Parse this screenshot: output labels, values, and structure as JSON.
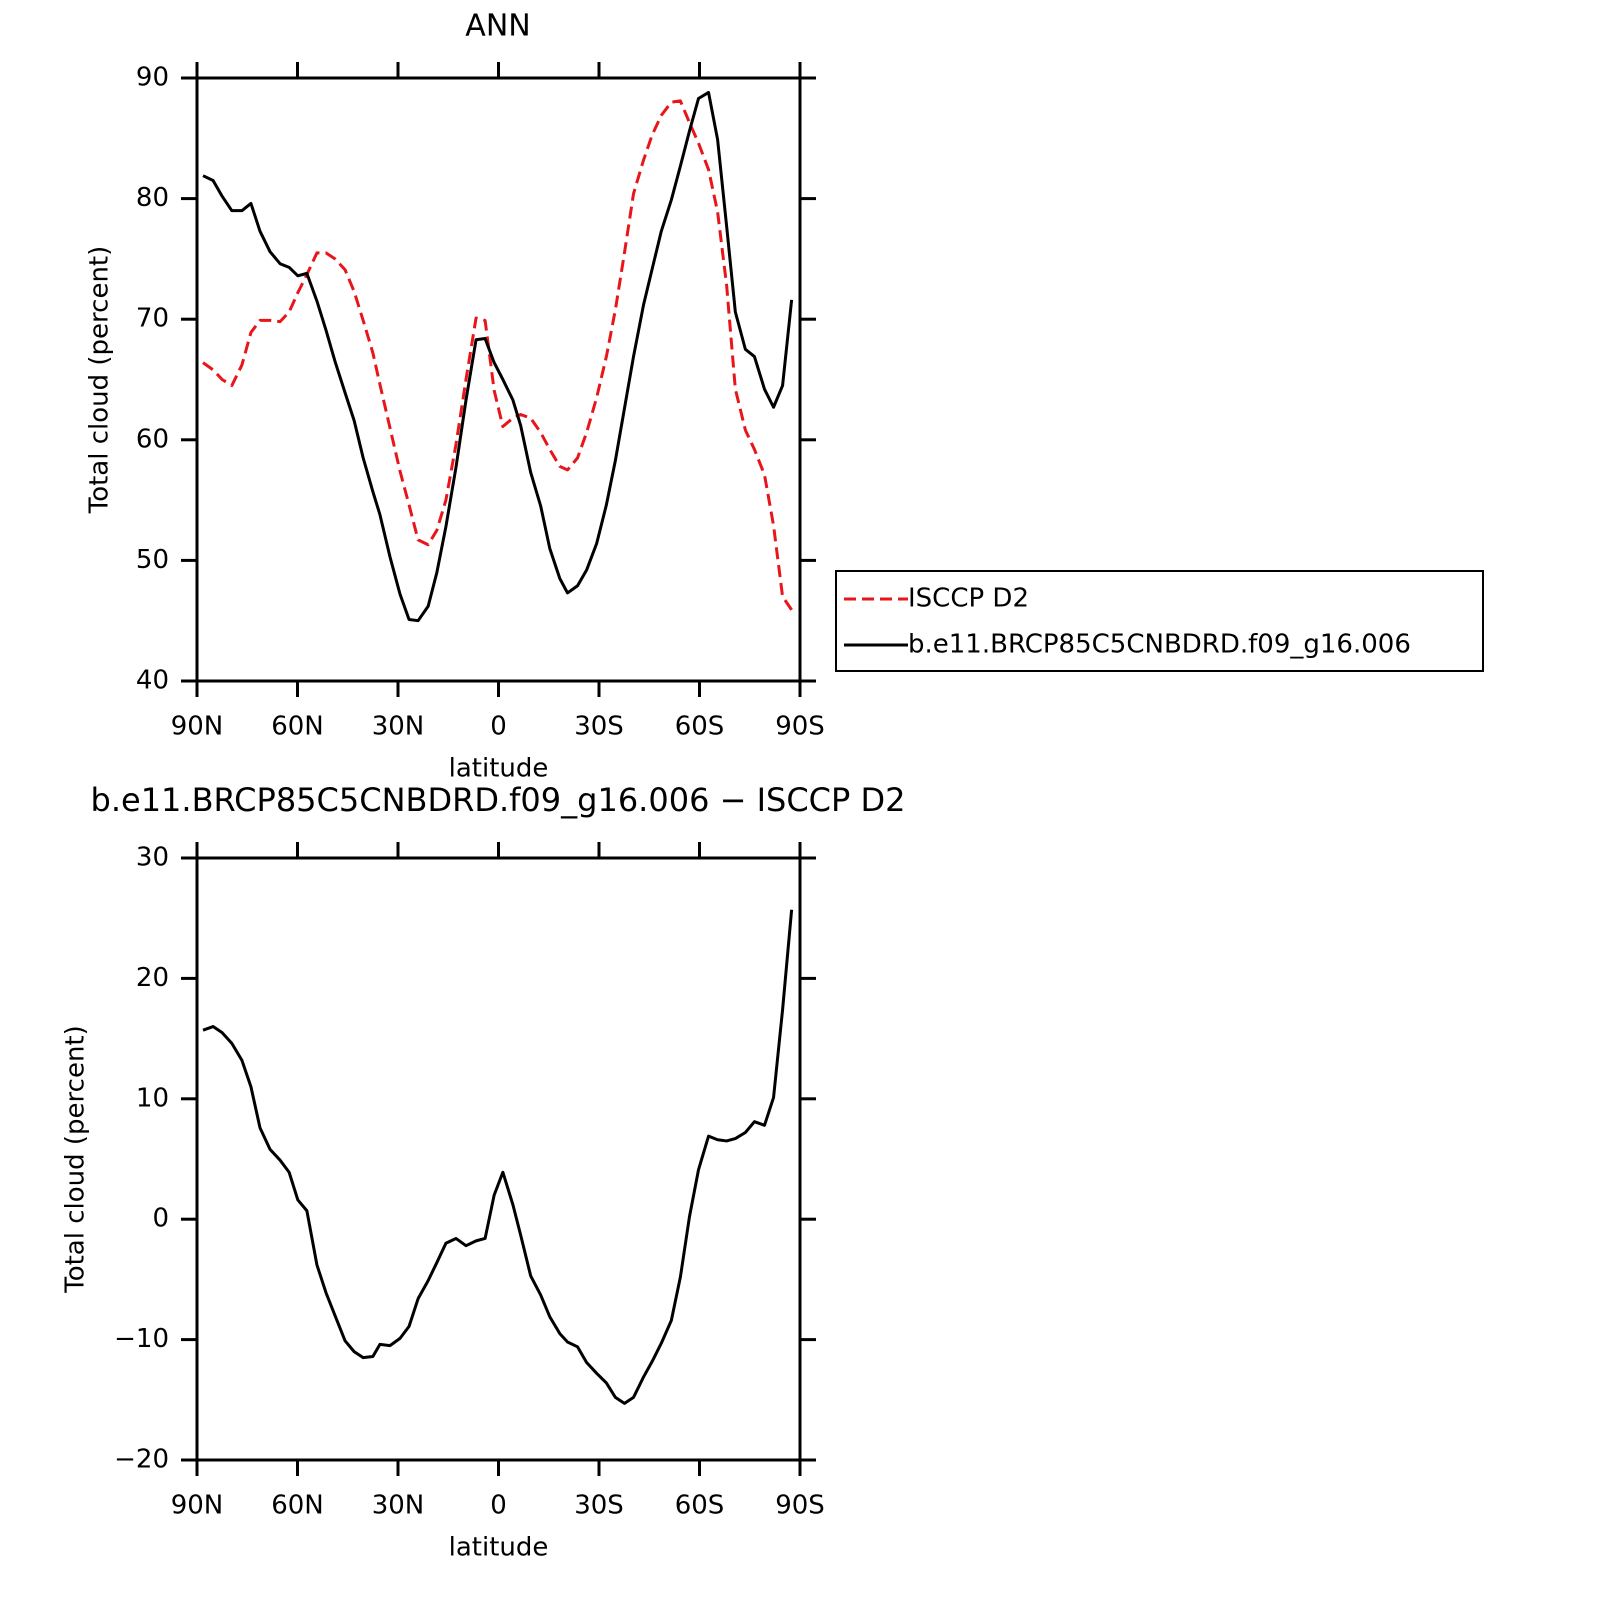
{
  "chart_data": [
    {
      "type": "line",
      "title": "ANN",
      "x_label": "latitude",
      "y_label": "Total cloud (percent)",
      "xlim": [
        90,
        -90
      ],
      "xticks": [
        {
          "value": 90,
          "label": "90N"
        },
        {
          "value": 60,
          "label": "60N"
        },
        {
          "value": 30,
          "label": "30N"
        },
        0,
        {
          "value": -30,
          "label": "30S"
        },
        {
          "value": -60,
          "label": "60S"
        },
        {
          "value": -90,
          "label": "90S"
        }
      ],
      "ylim": [
        40,
        90
      ],
      "yticks": [
        40,
        50,
        60,
        70,
        80,
        90
      ],
      "legend": "right",
      "x": [
        88.2,
        85.2,
        82.5,
        79.6,
        76.6,
        73.9,
        71.2,
        68.2,
        65.2,
        62.5,
        59.9,
        57.2,
        54.2,
        51.5,
        48.8,
        45.8,
        43.1,
        40.4,
        37.5,
        35.4,
        32.4,
        29.4,
        26.7,
        24.0,
        21.0,
        18.4,
        15.7,
        12.7,
        9.7,
        6.7,
        4.0,
        1.3,
        -1.3,
        -4.3,
        -6.6,
        -9.6,
        -12.6,
        -15.3,
        -18.3,
        -20.6,
        -23.6,
        -26.3,
        -29.3,
        -32.2,
        -34.9,
        -37.6,
        -40.3,
        -43.3,
        -45.9,
        -48.6,
        -51.6,
        -54.3,
        -57.0,
        -59.7,
        -62.7,
        -65.4,
        -68.1,
        -70.7,
        -73.7,
        -76.4,
        -79.4,
        -82.1,
        -84.8,
        -87.5
      ],
      "series": [
        {
          "name": "ISCCP D2",
          "color": "#e8161b",
          "style": "dashed",
          "values": [
            66.4,
            65.8,
            65.0,
            64.5,
            66.2,
            68.9,
            69.9,
            69.9,
            69.8,
            70.6,
            72.2,
            73.7,
            75.5,
            75.5,
            75.0,
            74.1,
            72.3,
            69.9,
            67.2,
            64.6,
            61.0,
            57.4,
            54.6,
            51.7,
            51.3,
            52.5,
            55.0,
            59.6,
            65.0,
            70.1,
            69.9,
            64.1,
            61.1,
            61.8,
            62.1,
            61.8,
            60.6,
            59.2,
            57.8,
            57.5,
            58.5,
            60.6,
            63.5,
            66.9,
            70.8,
            75.5,
            80.4,
            83.2,
            85.3,
            86.9,
            88.0,
            88.1,
            86.3,
            84.6,
            82.4,
            78.9,
            72.8,
            64.2,
            60.8,
            59.2,
            57.1,
            52.9,
            47.0,
            45.9
          ]
        },
        {
          "name": "b.e11.BRCP85C5CNBDRD.f09_g16.006",
          "color": "#000000",
          "style": "solid",
          "values": [
            81.9,
            81.5,
            80.2,
            79.0,
            79.0,
            79.6,
            77.3,
            75.6,
            74.6,
            74.3,
            73.6,
            73.8,
            71.5,
            69.1,
            66.5,
            63.9,
            61.6,
            58.5,
            55.7,
            53.8,
            50.3,
            47.2,
            45.1,
            45.0,
            46.2,
            49.0,
            52.8,
            57.7,
            63.3,
            68.3,
            68.4,
            66.4,
            65.0,
            63.3,
            61.2,
            57.3,
            54.5,
            51.0,
            48.5,
            47.3,
            47.9,
            49.2,
            51.4,
            54.6,
            58.3,
            62.6,
            66.9,
            71.2,
            74.2,
            77.3,
            79.9,
            82.7,
            85.6,
            88.3,
            88.8,
            84.9,
            77.7,
            70.6,
            67.5,
            66.9,
            64.2,
            62.7,
            64.5,
            71.6
          ]
        }
      ]
    },
    {
      "type": "line",
      "title": "b.e11.BRCP85C5CNBDRD.f09_g16.006 − ISCCP D2",
      "x_label": "latitude",
      "y_label": "Total cloud (percent)",
      "xlim": [
        90,
        -90
      ],
      "xticks": [
        {
          "value": 90,
          "label": "90N"
        },
        {
          "value": 60,
          "label": "60N"
        },
        {
          "value": 30,
          "label": "30N"
        },
        0,
        {
          "value": -30,
          "label": "30S"
        },
        {
          "value": -60,
          "label": "60S"
        },
        {
          "value": -90,
          "label": "90S"
        }
      ],
      "ylim": [
        -20,
        30
      ],
      "yticks": [
        {
          "value": -20,
          "label": "−20"
        },
        {
          "value": -10,
          "label": "−10"
        },
        0,
        10,
        20,
        30
      ],
      "x": [
        88.2,
        85.2,
        82.5,
        79.6,
        76.6,
        73.9,
        71.2,
        68.2,
        65.2,
        62.5,
        59.9,
        57.2,
        54.2,
        51.5,
        48.8,
        45.8,
        43.1,
        40.4,
        37.5,
        35.4,
        32.4,
        29.4,
        26.7,
        24.0,
        21.0,
        18.4,
        15.7,
        12.7,
        9.7,
        6.7,
        4.0,
        1.3,
        -1.3,
        -4.3,
        -6.6,
        -9.6,
        -12.6,
        -15.3,
        -18.3,
        -20.6,
        -23.6,
        -26.3,
        -29.3,
        -32.2,
        -34.9,
        -37.6,
        -40.3,
        -43.3,
        -45.9,
        -48.6,
        -51.6,
        -54.3,
        -57.0,
        -59.7,
        -62.7,
        -65.4,
        -68.1,
        -70.7,
        -73.7,
        -76.4,
        -79.4,
        -82.1,
        -84.8,
        -87.5
      ],
      "series": [
        {
          "color": "#000000",
          "style": "solid",
          "values": [
            15.7,
            16.0,
            15.5,
            14.6,
            13.2,
            11.0,
            7.6,
            5.8,
            4.9,
            3.9,
            1.6,
            0.7,
            -3.8,
            -6.1,
            -8.0,
            -10.1,
            -11.0,
            -11.5,
            -11.4,
            -10.4,
            -10.5,
            -9.9,
            -8.9,
            -6.6,
            -5.1,
            -3.6,
            -2.0,
            -1.6,
            -2.2,
            -1.8,
            -1.6,
            2.0,
            3.9,
            1.2,
            -1.3,
            -4.7,
            -6.3,
            -8.1,
            -9.5,
            -10.2,
            -10.6,
            -11.9,
            -12.8,
            -13.6,
            -14.8,
            -15.3,
            -14.8,
            -13.1,
            -11.8,
            -10.3,
            -8.4,
            -4.8,
            0.2,
            4.1,
            6.9,
            6.6,
            6.5,
            6.7,
            7.2,
            8.1,
            7.8,
            10.1,
            17.4,
            25.7
          ]
        }
      ]
    }
  ]
}
